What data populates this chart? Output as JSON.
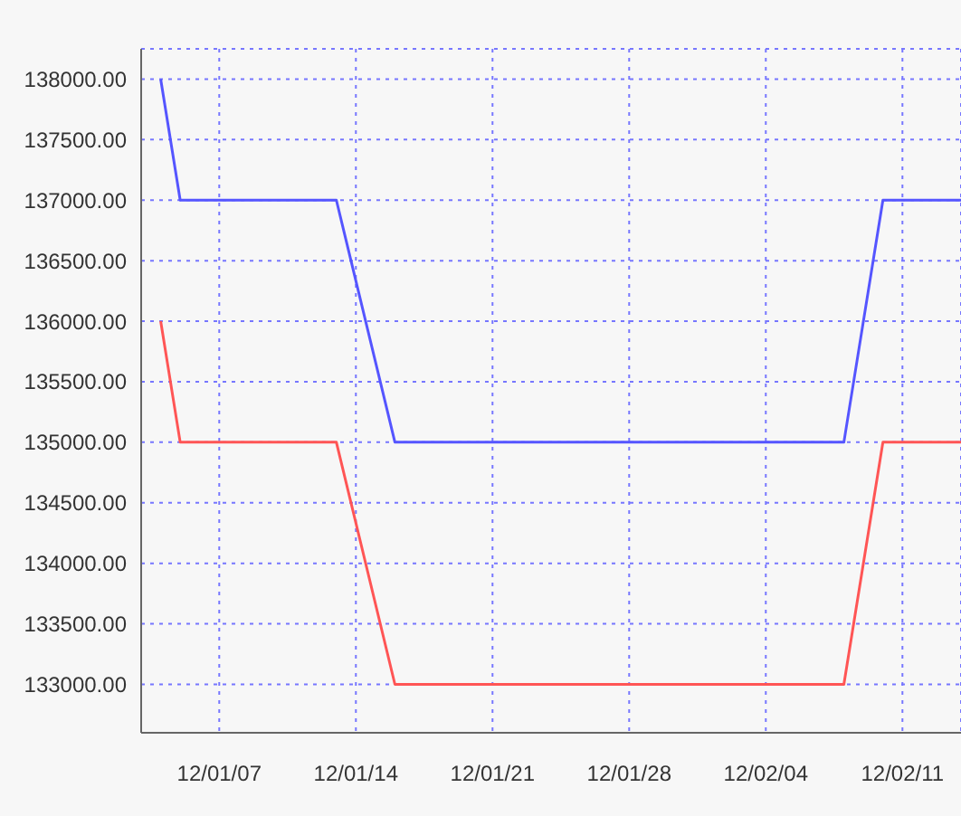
{
  "chart_data": {
    "type": "line",
    "x": [
      "--01-04",
      "--01-05",
      "--01-13",
      "--01-16",
      "--02-08",
      "--02-10",
      "--02-14"
    ],
    "series": [
      {
        "color": "#5555ff",
        "values": [
          138000,
          137000,
          137000,
          135000,
          135000,
          137000,
          137000
        ]
      },
      {
        "color": "#ff5555",
        "values": [
          136000,
          135000,
          135000,
          133000,
          133000,
          135000,
          135000
        ]
      }
    ],
    "xlim": [
      "--01-03",
      "--02-14"
    ],
    "xticks": [
      {
        "value": "--01-07",
        "label": "12/01/07"
      },
      {
        "value": "--01-14",
        "label": "12/01/14"
      },
      {
        "value": "--01-21",
        "label": "12/01/21"
      },
      {
        "value": "--01-28",
        "label": "12/01/28"
      },
      {
        "value": "--02-04",
        "label": "12/02/04"
      },
      {
        "value": "--02-11",
        "label": "12/02/11"
      }
    ],
    "ylim": [
      132600,
      138250
    ],
    "yticks": [
      {
        "value": 133000,
        "label": "133000.00"
      },
      {
        "value": 133500,
        "label": "133500.00"
      },
      {
        "value": 134000,
        "label": "134000.00"
      },
      {
        "value": 134500,
        "label": "134500.00"
      },
      {
        "value": 135000,
        "label": "135000.00"
      },
      {
        "value": 135500,
        "label": "135500.00"
      },
      {
        "value": 136000,
        "label": "136000.00"
      },
      {
        "value": 136500,
        "label": "136500.00"
      },
      {
        "value": 137000,
        "label": "137000.00"
      },
      {
        "value": 137500,
        "label": "137500.00"
      },
      {
        "value": 138000,
        "label": "138000.00"
      }
    ],
    "grid": true,
    "legend": false,
    "marker": "none",
    "line_style": "solid"
  }
}
